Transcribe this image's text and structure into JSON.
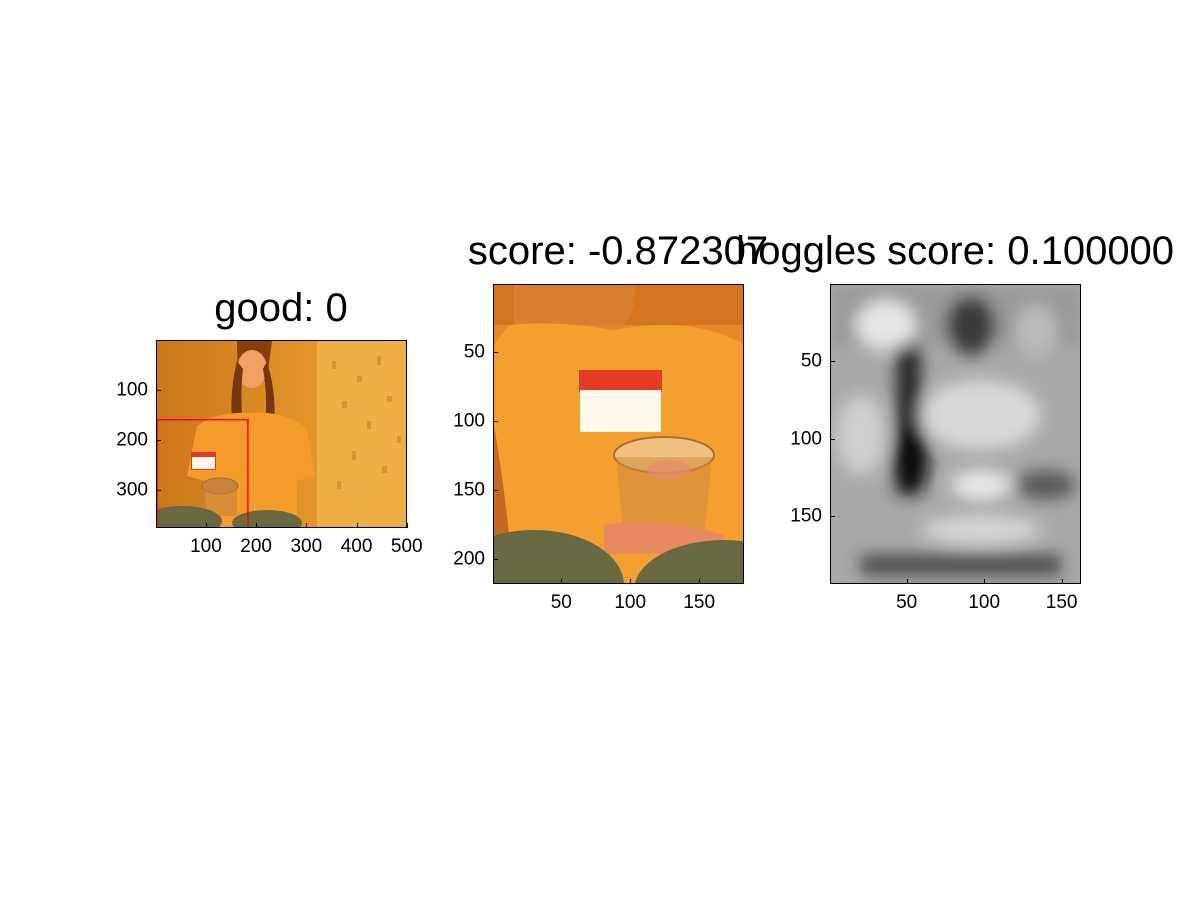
{
  "chart_data": [
    {
      "type": "image",
      "title": "good: 0",
      "xlim": [
        1,
        500
      ],
      "ylim": [
        1,
        375
      ],
      "xticks": [
        100,
        200,
        300,
        400,
        500
      ],
      "yticks": [
        100,
        200,
        300
      ],
      "annotations": [
        {
          "kind": "rectangle",
          "color": "#ff0000",
          "x_range": [
            1,
            182
          ],
          "y_range": [
            158,
            375
          ]
        }
      ]
    },
    {
      "type": "image",
      "title": "score: -0.872307",
      "xlim": [
        1,
        182
      ],
      "ylim": [
        1,
        218
      ],
      "xticks": [
        50,
        100,
        150
      ],
      "yticks": [
        50,
        100,
        150,
        200
      ]
    },
    {
      "type": "heatmap",
      "title": "hoggles score: 0.100000",
      "colormap": "gray",
      "xlim": [
        1,
        162
      ],
      "ylim": [
        1,
        193
      ],
      "xticks": [
        50,
        100,
        150
      ],
      "yticks": [
        50,
        100,
        150
      ]
    }
  ]
}
